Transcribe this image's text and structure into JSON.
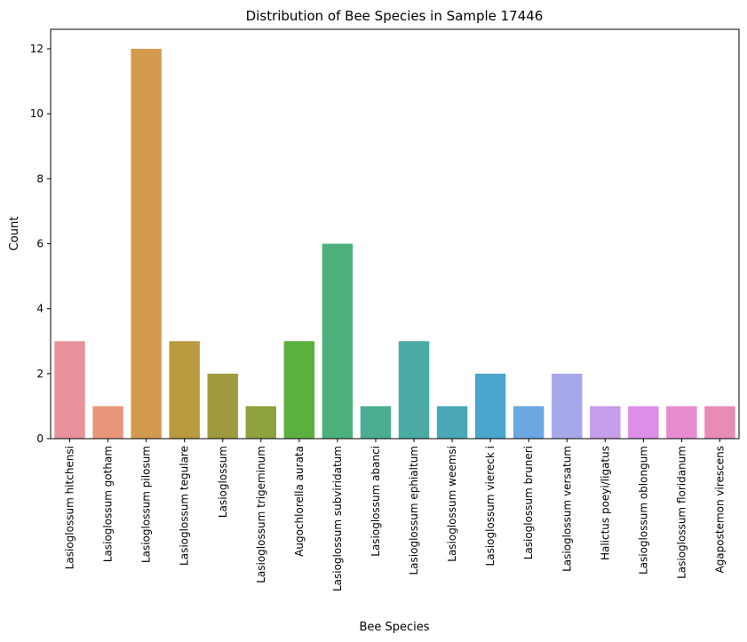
{
  "chart_data": {
    "type": "bar",
    "title": "Distribution of Bee Species in Sample 17446",
    "xlabel": "Bee Species",
    "ylabel": "Count",
    "ylim": [
      0,
      12.6
    ],
    "yticks": [
      0,
      2,
      4,
      6,
      8,
      10,
      12
    ],
    "grid": false,
    "legend": "none",
    "categories": [
      "Lasioglossum hitchensi",
      "Lasioglossum gotham",
      "Lasioglossum pilosum",
      "Lasioglossum tegulare",
      "Lasioglossum",
      "Lasioglossum trigeminum",
      "Augochlorella aurata",
      "Lasioglossum subviridatum",
      "Lasioglossum abanci",
      "Lasioglossum ephialtum",
      "Lasioglossum weemsi",
      "Lasioglossum viereck i",
      "Lasioglossum bruneri",
      "Lasioglossum versatum",
      "Halictus poeyi/ligatus",
      "Lasioglossum oblongum",
      "Lasioglossum floridanum",
      "Agapostemon virescens"
    ],
    "values": [
      3,
      1,
      12,
      3,
      2,
      1,
      3,
      6,
      1,
      3,
      1,
      2,
      1,
      2,
      1,
      1,
      1,
      1
    ],
    "colors": [
      "#e8919a",
      "#e8967a",
      "#d39a4e",
      "#b99a3e",
      "#a09a3e",
      "#8ea23e",
      "#5bb040",
      "#4cb07c",
      "#4bae93",
      "#4aaaa4",
      "#4aa8b6",
      "#4aa6cc",
      "#6ba8e2",
      "#a6a8ea",
      "#c79ee9",
      "#dd8fe8",
      "#e88ad0",
      "#e88cb6"
    ]
  }
}
